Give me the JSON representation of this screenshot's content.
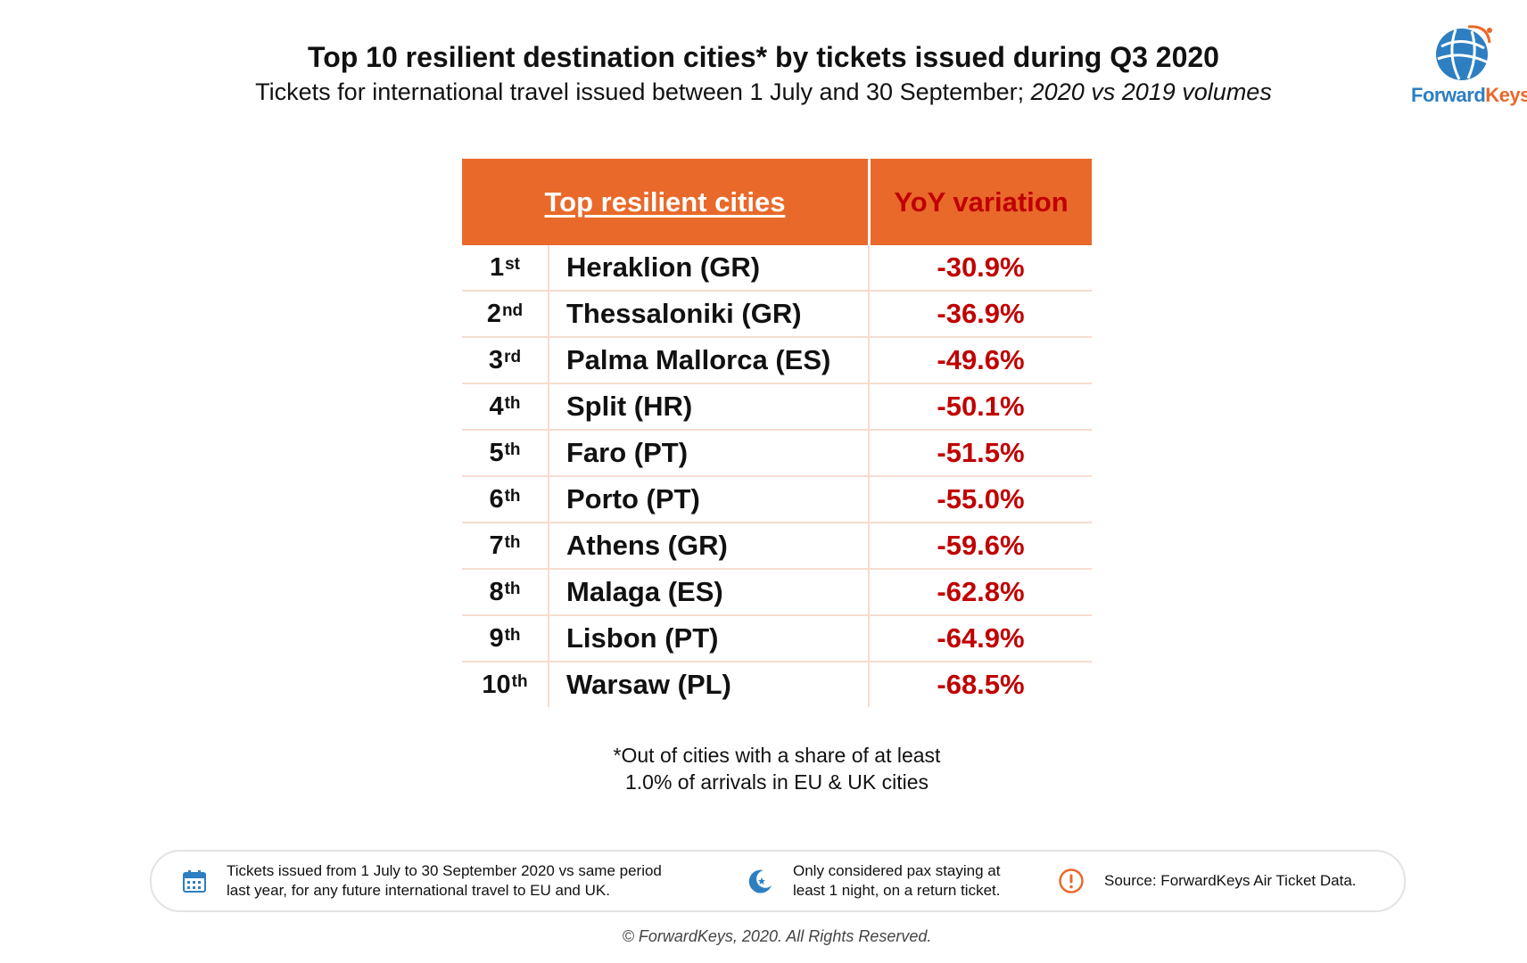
{
  "header": {
    "title": "Top 10 resilient destination cities* by tickets issued during Q3 2020",
    "subtitle_main": "Tickets for international travel issued between 1 July and 30 September; ",
    "subtitle_italic": "2020 vs 2019 volumes"
  },
  "logo": {
    "part1": "Forward",
    "part2": "Keys",
    "icon": "globe-icon"
  },
  "colors": {
    "accent": "#e8692a",
    "negative": "#c00000",
    "brand_blue": "#2d7fc2"
  },
  "table": {
    "headers": {
      "cities": "Top resilient cities",
      "yoy": "YoY variation"
    },
    "rows": [
      {
        "rank": "1",
        "suffix": "st",
        "city": "Heraklion (GR)",
        "yoy": "-30.9%"
      },
      {
        "rank": "2",
        "suffix": "nd",
        "city": "Thessaloniki (GR)",
        "yoy": "-36.9%"
      },
      {
        "rank": "3",
        "suffix": "rd",
        "city": "Palma Mallorca (ES)",
        "yoy": "-49.6%"
      },
      {
        "rank": "4",
        "suffix": "th",
        "city": "Split (HR)",
        "yoy": "-50.1%"
      },
      {
        "rank": "5",
        "suffix": "th",
        "city": "Faro (PT)",
        "yoy": "-51.5%"
      },
      {
        "rank": "6",
        "suffix": "th",
        "city": "Porto (PT)",
        "yoy": "-55.0%"
      },
      {
        "rank": "7",
        "suffix": "th",
        "city": "Athens (GR)",
        "yoy": "-59.6%"
      },
      {
        "rank": "8",
        "suffix": "th",
        "city": "Malaga (ES)",
        "yoy": "-62.8%"
      },
      {
        "rank": "9",
        "suffix": "th",
        "city": "Lisbon (PT)",
        "yoy": "-64.9%"
      },
      {
        "rank": "10",
        "suffix": "th",
        "city": "Warsaw (PL)",
        "yoy": "-68.5%"
      }
    ]
  },
  "footnote": {
    "line1": "*Out of cities with a share of at least",
    "line2": "1.0% of arrivals in EU & UK cities"
  },
  "info": {
    "item1": {
      "icon": "calendar-icon",
      "line1": "Tickets issued from 1 July to 30 September 2020 vs same period",
      "line2": "last year, for any future international travel to EU and UK."
    },
    "item2": {
      "icon": "moon-icon",
      "line1": "Only considered pax staying at",
      "line2": "least 1 night, on a return ticket."
    },
    "item3": {
      "icon": "alert-icon",
      "text": "Source: ForwardKeys Air Ticket Data."
    }
  },
  "copyright": "© ForwardKeys, 2020. All Rights Reserved.",
  "chart_data": {
    "type": "table",
    "title": "Top 10 resilient destination cities* by tickets issued during Q3 2020",
    "subtitle": "Tickets for international travel issued between 1 July and 30 September; 2020 vs 2019 volumes",
    "columns": [
      "Top resilient cities",
      "YoY variation"
    ],
    "categories": [
      "Heraklion (GR)",
      "Thessaloniki (GR)",
      "Palma Mallorca (ES)",
      "Split (HR)",
      "Faro (PT)",
      "Porto (PT)",
      "Athens (GR)",
      "Malaga (ES)",
      "Lisbon (PT)",
      "Warsaw (PL)"
    ],
    "values": [
      -30.9,
      -36.9,
      -49.6,
      -50.1,
      -51.5,
      -55.0,
      -59.6,
      -62.8,
      -64.9,
      -68.5
    ]
  }
}
